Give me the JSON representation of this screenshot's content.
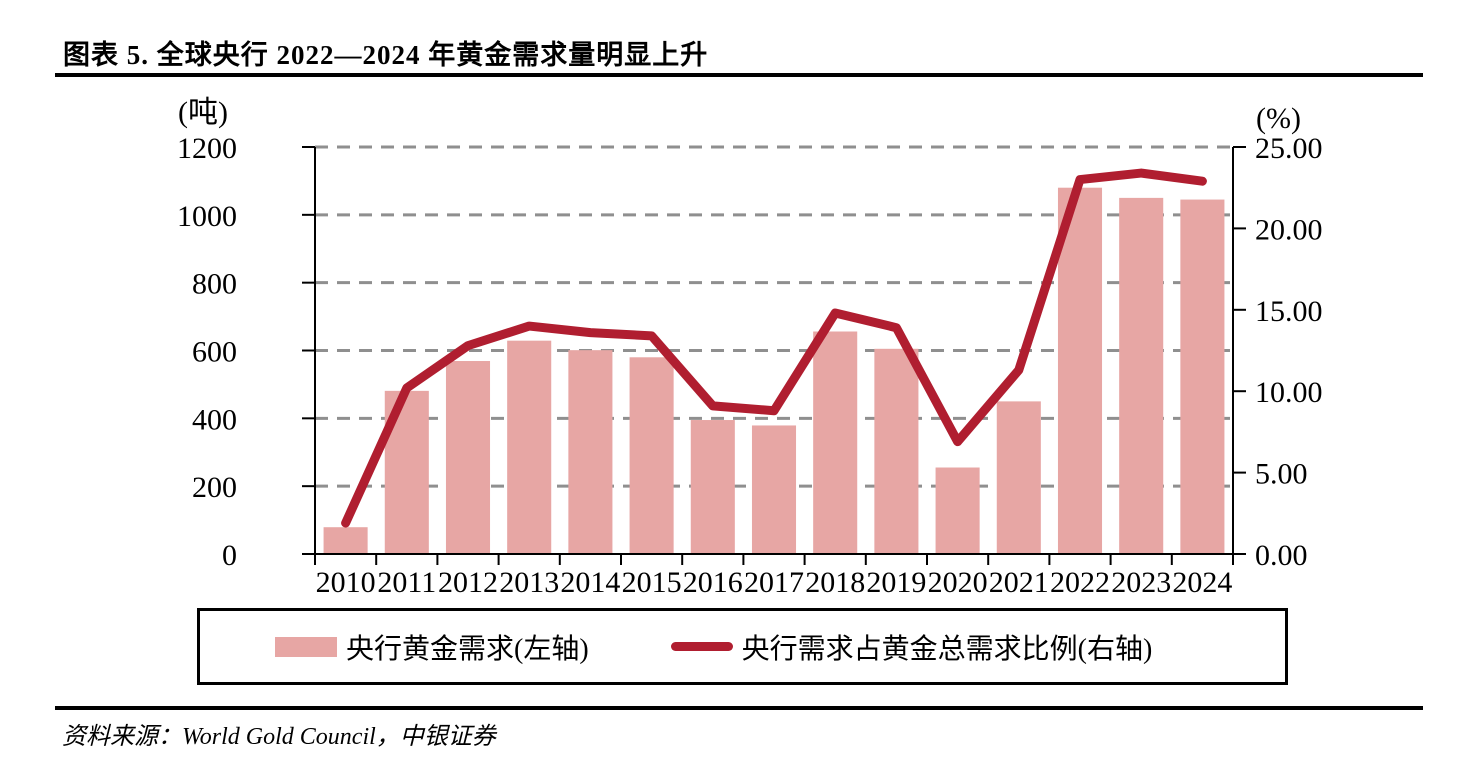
{
  "page": {
    "title": "图表 5. 全球央行 2022—2024 年黄金需求量明显上升",
    "source": "资料来源：World Gold Council，中银证券"
  },
  "legend": {
    "bars_label": "央行黄金需求(左轴)",
    "line_label": "央行需求占黄金总需求比例(右轴)"
  },
  "colors": {
    "bar": "#e7a6a4",
    "line": "#b01e30",
    "grid": "#8f8f8f",
    "axis": "#000000"
  },
  "chart_data": {
    "type": "bar",
    "subtype": "bar+line-dual-axis",
    "title": "图表 5. 全球央行 2022—2024 年黄金需求量明显上升",
    "categories": [
      "2010",
      "2011",
      "2012",
      "2013",
      "2014",
      "2015",
      "2016",
      "2017",
      "2018",
      "2019",
      "2020",
      "2021",
      "2022",
      "2023",
      "2024"
    ],
    "series": [
      {
        "name": "央行黄金需求(左轴)",
        "type": "bar",
        "axis": "left",
        "values": [
          79,
          481,
          569,
          629,
          601,
          580,
          395,
          379,
          656,
          605,
          255,
          450,
          1080,
          1050,
          1045
        ]
      },
      {
        "name": "央行需求占黄金总需求比例(右轴)",
        "type": "line",
        "axis": "right",
        "values": [
          1.9,
          10.2,
          12.8,
          14.0,
          13.6,
          13.4,
          9.1,
          8.8,
          14.8,
          13.9,
          6.9,
          11.3,
          23.0,
          23.4,
          22.9
        ]
      }
    ],
    "left_axis": {
      "title": "(吨)",
      "ticks": [
        "1200",
        "1000",
        "800",
        "600",
        "400",
        "200",
        "0"
      ],
      "range": [
        0,
        1200
      ]
    },
    "right_axis": {
      "title": "(%)",
      "ticks": [
        "25.00",
        "20.00",
        "15.00",
        "10.00",
        "5.00",
        "0.00"
      ],
      "range": [
        0,
        25
      ]
    },
    "xlabel": "",
    "ylabel": "",
    "grid": "horizontal-dashed",
    "legend_position": "bottom-box"
  }
}
